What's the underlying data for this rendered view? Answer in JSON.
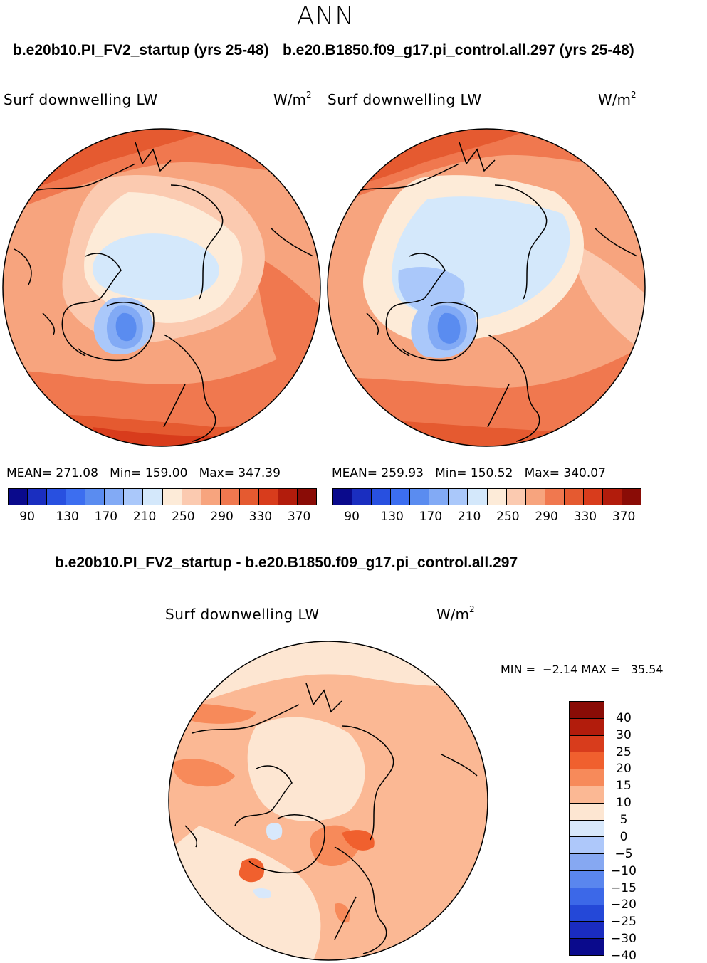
{
  "season": "ANN",
  "top_left": {
    "case": "b.e20b10.PI_FV2_startup (yrs 25-48)",
    "variable": "Surf downwelling LW",
    "units": "W/m",
    "units_exp": "2",
    "mean_text": "MEAN= 271.08",
    "min_text": "Min= 159.00",
    "max_text": "Max= 347.39"
  },
  "top_right": {
    "case": "b.e20.B1850.f09_g17.pi_control.all.297 (yrs 25-48)",
    "variable": "Surf downwelling LW",
    "units": "W/m",
    "units_exp": "2",
    "mean_text": "MEAN= 259.93",
    "min_text": "Min= 150.52",
    "max_text": "Max= 340.07"
  },
  "abs_colorbar": {
    "colors": [
      "#0a0a8c",
      "#1a2ec0",
      "#2850e0",
      "#3c6ef0",
      "#5a8cf0",
      "#82aaf5",
      "#aac8fa",
      "#d4e8fb",
      "#fdebd8",
      "#fbcab0",
      "#f7a47e",
      "#f0784f",
      "#e55a30",
      "#d83c1c",
      "#b21c0c",
      "#8a0c06"
    ],
    "ticks": [
      "90",
      "130",
      "170",
      "210",
      "250",
      "290",
      "330",
      "370"
    ]
  },
  "difference": {
    "title": "b.e20b10.PI_FV2_startup - b.e20.B1850.f09_g17.pi_control.all.297",
    "variable": "Surf downwelling LW",
    "units": "W/m",
    "units_exp": "2",
    "min_label": "MIN =",
    "min_value": "−2.14",
    "max_label": "MAX =",
    "max_value": "35.54"
  },
  "diff_colorbar": {
    "colors": [
      "#8a0c06",
      "#b21c0c",
      "#d83c1c",
      "#f0602e",
      "#f78a5a",
      "#fbb894",
      "#fde6d2",
      "#d8e8fb",
      "#aec8fa",
      "#86a8f2",
      "#5a86ee",
      "#3c68e8",
      "#2448d8",
      "#1a2cc0",
      "#0a0a8c"
    ],
    "labels": [
      "40",
      "30",
      "25",
      "20",
      "15",
      "10",
      "5",
      "0",
      "−5",
      "−10",
      "−15",
      "−20",
      "−25",
      "−30",
      "−40"
    ]
  }
}
